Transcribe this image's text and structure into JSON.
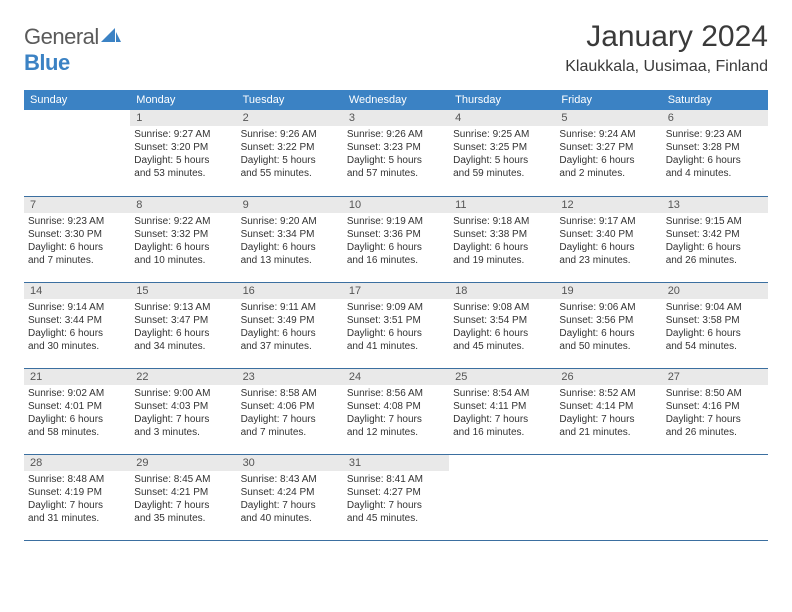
{
  "logo": {
    "general": "General",
    "blue": "Blue"
  },
  "title": "January 2024",
  "location": "Klaukkala, Uusimaa, Finland",
  "weekdays": [
    "Sunday",
    "Monday",
    "Tuesday",
    "Wednesday",
    "Thursday",
    "Friday",
    "Saturday"
  ],
  "colors": {
    "header_bg": "#3b82c4",
    "header_text": "#ffffff",
    "daynum_bg": "#e9e9e9",
    "row_border": "#3b6fa0"
  },
  "weeks": [
    [
      {
        "n": "",
        "lines": []
      },
      {
        "n": "1",
        "lines": [
          "Sunrise: 9:27 AM",
          "Sunset: 3:20 PM",
          "Daylight: 5 hours",
          "and 53 minutes."
        ]
      },
      {
        "n": "2",
        "lines": [
          "Sunrise: 9:26 AM",
          "Sunset: 3:22 PM",
          "Daylight: 5 hours",
          "and 55 minutes."
        ]
      },
      {
        "n": "3",
        "lines": [
          "Sunrise: 9:26 AM",
          "Sunset: 3:23 PM",
          "Daylight: 5 hours",
          "and 57 minutes."
        ]
      },
      {
        "n": "4",
        "lines": [
          "Sunrise: 9:25 AM",
          "Sunset: 3:25 PM",
          "Daylight: 5 hours",
          "and 59 minutes."
        ]
      },
      {
        "n": "5",
        "lines": [
          "Sunrise: 9:24 AM",
          "Sunset: 3:27 PM",
          "Daylight: 6 hours",
          "and 2 minutes."
        ]
      },
      {
        "n": "6",
        "lines": [
          "Sunrise: 9:23 AM",
          "Sunset: 3:28 PM",
          "Daylight: 6 hours",
          "and 4 minutes."
        ]
      }
    ],
    [
      {
        "n": "7",
        "lines": [
          "Sunrise: 9:23 AM",
          "Sunset: 3:30 PM",
          "Daylight: 6 hours",
          "and 7 minutes."
        ]
      },
      {
        "n": "8",
        "lines": [
          "Sunrise: 9:22 AM",
          "Sunset: 3:32 PM",
          "Daylight: 6 hours",
          "and 10 minutes."
        ]
      },
      {
        "n": "9",
        "lines": [
          "Sunrise: 9:20 AM",
          "Sunset: 3:34 PM",
          "Daylight: 6 hours",
          "and 13 minutes."
        ]
      },
      {
        "n": "10",
        "lines": [
          "Sunrise: 9:19 AM",
          "Sunset: 3:36 PM",
          "Daylight: 6 hours",
          "and 16 minutes."
        ]
      },
      {
        "n": "11",
        "lines": [
          "Sunrise: 9:18 AM",
          "Sunset: 3:38 PM",
          "Daylight: 6 hours",
          "and 19 minutes."
        ]
      },
      {
        "n": "12",
        "lines": [
          "Sunrise: 9:17 AM",
          "Sunset: 3:40 PM",
          "Daylight: 6 hours",
          "and 23 minutes."
        ]
      },
      {
        "n": "13",
        "lines": [
          "Sunrise: 9:15 AM",
          "Sunset: 3:42 PM",
          "Daylight: 6 hours",
          "and 26 minutes."
        ]
      }
    ],
    [
      {
        "n": "14",
        "lines": [
          "Sunrise: 9:14 AM",
          "Sunset: 3:44 PM",
          "Daylight: 6 hours",
          "and 30 minutes."
        ]
      },
      {
        "n": "15",
        "lines": [
          "Sunrise: 9:13 AM",
          "Sunset: 3:47 PM",
          "Daylight: 6 hours",
          "and 34 minutes."
        ]
      },
      {
        "n": "16",
        "lines": [
          "Sunrise: 9:11 AM",
          "Sunset: 3:49 PM",
          "Daylight: 6 hours",
          "and 37 minutes."
        ]
      },
      {
        "n": "17",
        "lines": [
          "Sunrise: 9:09 AM",
          "Sunset: 3:51 PM",
          "Daylight: 6 hours",
          "and 41 minutes."
        ]
      },
      {
        "n": "18",
        "lines": [
          "Sunrise: 9:08 AM",
          "Sunset: 3:54 PM",
          "Daylight: 6 hours",
          "and 45 minutes."
        ]
      },
      {
        "n": "19",
        "lines": [
          "Sunrise: 9:06 AM",
          "Sunset: 3:56 PM",
          "Daylight: 6 hours",
          "and 50 minutes."
        ]
      },
      {
        "n": "20",
        "lines": [
          "Sunrise: 9:04 AM",
          "Sunset: 3:58 PM",
          "Daylight: 6 hours",
          "and 54 minutes."
        ]
      }
    ],
    [
      {
        "n": "21",
        "lines": [
          "Sunrise: 9:02 AM",
          "Sunset: 4:01 PM",
          "Daylight: 6 hours",
          "and 58 minutes."
        ]
      },
      {
        "n": "22",
        "lines": [
          "Sunrise: 9:00 AM",
          "Sunset: 4:03 PM",
          "Daylight: 7 hours",
          "and 3 minutes."
        ]
      },
      {
        "n": "23",
        "lines": [
          "Sunrise: 8:58 AM",
          "Sunset: 4:06 PM",
          "Daylight: 7 hours",
          "and 7 minutes."
        ]
      },
      {
        "n": "24",
        "lines": [
          "Sunrise: 8:56 AM",
          "Sunset: 4:08 PM",
          "Daylight: 7 hours",
          "and 12 minutes."
        ]
      },
      {
        "n": "25",
        "lines": [
          "Sunrise: 8:54 AM",
          "Sunset: 4:11 PM",
          "Daylight: 7 hours",
          "and 16 minutes."
        ]
      },
      {
        "n": "26",
        "lines": [
          "Sunrise: 8:52 AM",
          "Sunset: 4:14 PM",
          "Daylight: 7 hours",
          "and 21 minutes."
        ]
      },
      {
        "n": "27",
        "lines": [
          "Sunrise: 8:50 AM",
          "Sunset: 4:16 PM",
          "Daylight: 7 hours",
          "and 26 minutes."
        ]
      }
    ],
    [
      {
        "n": "28",
        "lines": [
          "Sunrise: 8:48 AM",
          "Sunset: 4:19 PM",
          "Daylight: 7 hours",
          "and 31 minutes."
        ]
      },
      {
        "n": "29",
        "lines": [
          "Sunrise: 8:45 AM",
          "Sunset: 4:21 PM",
          "Daylight: 7 hours",
          "and 35 minutes."
        ]
      },
      {
        "n": "30",
        "lines": [
          "Sunrise: 8:43 AM",
          "Sunset: 4:24 PM",
          "Daylight: 7 hours",
          "and 40 minutes."
        ]
      },
      {
        "n": "31",
        "lines": [
          "Sunrise: 8:41 AM",
          "Sunset: 4:27 PM",
          "Daylight: 7 hours",
          "and 45 minutes."
        ]
      },
      {
        "n": "",
        "lines": []
      },
      {
        "n": "",
        "lines": []
      },
      {
        "n": "",
        "lines": []
      }
    ]
  ]
}
